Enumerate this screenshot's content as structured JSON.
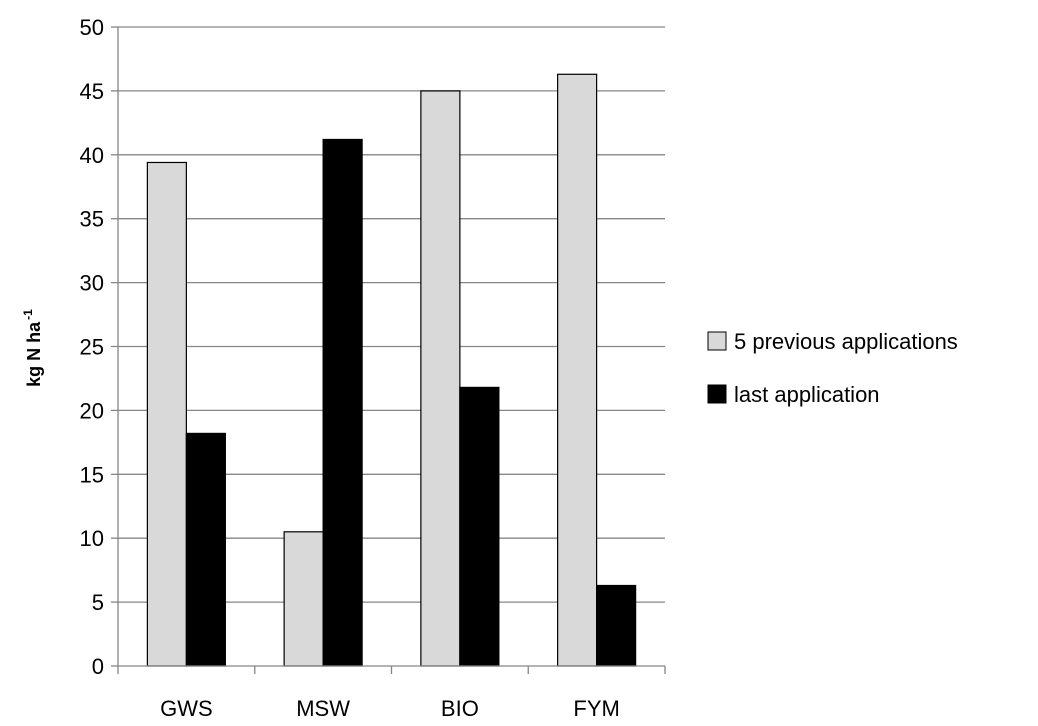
{
  "chart_data": {
    "type": "bar",
    "categories": [
      "GWS",
      "MSW",
      "BIO",
      "FYM"
    ],
    "series": [
      {
        "name": "5 previous applications",
        "values": [
          39.4,
          10.5,
          45.0,
          46.3
        ],
        "color": "#d9d9d9"
      },
      {
        "name": "last application",
        "values": [
          18.2,
          41.2,
          21.8,
          6.3
        ],
        "color": "#000000"
      }
    ],
    "ylabel": "kg N ha",
    "ylabel_superscript": "-1",
    "ylim": [
      0,
      50
    ],
    "yticks": [
      0,
      5,
      10,
      15,
      20,
      25,
      30,
      35,
      40,
      45,
      50
    ],
    "grid": true,
    "legend_position": "right"
  }
}
